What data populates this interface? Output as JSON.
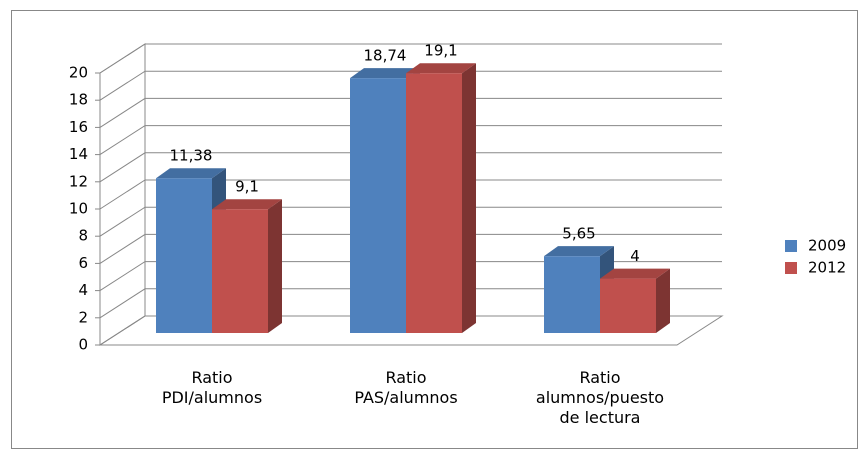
{
  "chart_data": {
    "type": "bar3d",
    "categories": [
      "Ratio\nPDI/alumnos",
      "Ratio\nPAS/alumnos",
      "Ratio\nalumnos/puesto\nde lectura"
    ],
    "series": [
      {
        "name": "2009",
        "color": "#4f81bd",
        "values": [
          11.38,
          18.74,
          5.65
        ],
        "value_labels": [
          "11,38",
          "18,74",
          "5,65"
        ]
      },
      {
        "name": "2012",
        "color": "#c0504d",
        "values": [
          9.1,
          19.1,
          4
        ],
        "value_labels": [
          "9,1",
          "19,1",
          "4"
        ]
      }
    ],
    "ylim": [
      0,
      20
    ],
    "yticks": [
      0,
      2,
      4,
      6,
      8,
      10,
      12,
      14,
      16,
      18,
      20
    ],
    "grid": true,
    "legend": "right"
  }
}
